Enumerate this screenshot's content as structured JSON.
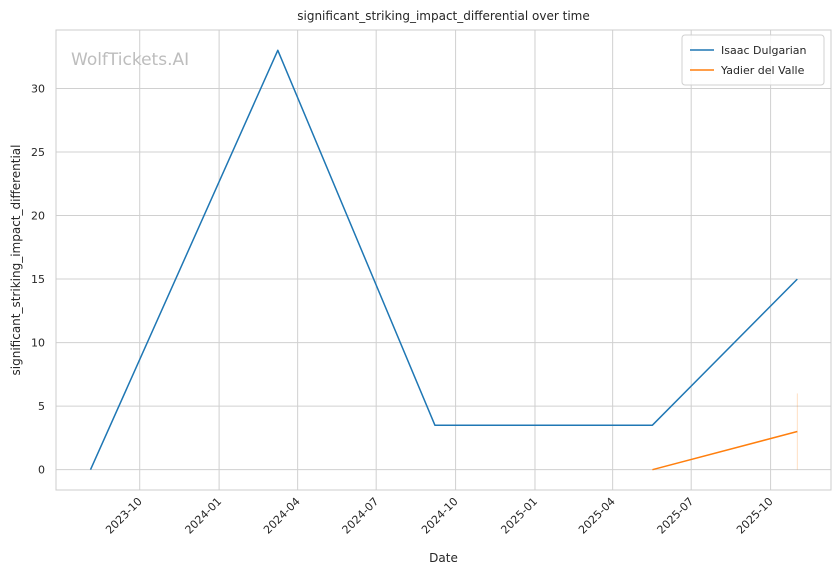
{
  "chart_data": {
    "type": "line",
    "title": "significant_striking_impact_differential over time",
    "xlabel": "Date",
    "ylabel": "significant_striking_impact_differential",
    "watermark": "WolfTickets.AI",
    "xlim": [
      "2023-06-26",
      "2025-12-10"
    ],
    "ylim": [
      -1.6,
      34.6
    ],
    "x_ticks": [
      "2023-10-01",
      "2024-01-01",
      "2024-04-01",
      "2024-07-01",
      "2024-10-01",
      "2025-01-01",
      "2025-04-01",
      "2025-07-01",
      "2025-10-01"
    ],
    "x_tick_labels": [
      "2023-10",
      "2024-01",
      "2024-04",
      "2024-07",
      "2024-10",
      "2025-01",
      "2025-04",
      "2025-07",
      "2025-10"
    ],
    "y_ticks": [
      0,
      5,
      10,
      15,
      20,
      25,
      30
    ],
    "y_tick_labels": [
      "0",
      "5",
      "10",
      "15",
      "20",
      "25",
      "30"
    ],
    "grid": true,
    "legend_position": "top-right",
    "series": [
      {
        "name": "Isaac Dulgarian",
        "color": "#1f77b4",
        "x": [
          "2023-08-05",
          "2024-03-09",
          "2024-09-07",
          "2025-05-17",
          "2025-11-01"
        ],
        "y": [
          0,
          33,
          3.5,
          3.5,
          15
        ]
      },
      {
        "name": "Yadier del Valle",
        "color": "#ff7f0e",
        "x": [
          "2025-05-17",
          "2025-11-01"
        ],
        "y": [
          0,
          3
        ]
      }
    ],
    "range_band": {
      "color": "#ff7f0e",
      "x": "2025-11-01",
      "y": [
        0,
        6
      ]
    }
  }
}
